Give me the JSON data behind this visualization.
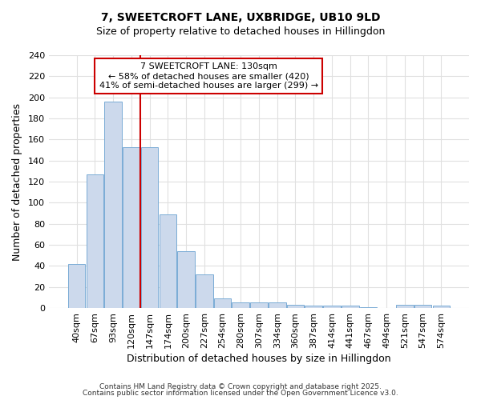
{
  "title": "7, SWEETCROFT LANE, UXBRIDGE, UB10 9LD",
  "subtitle": "Size of property relative to detached houses in Hillingdon",
  "xlabel": "Distribution of detached houses by size in Hillingdon",
  "ylabel": "Number of detached properties",
  "categories": [
    "40sqm",
    "67sqm",
    "93sqm",
    "120sqm",
    "147sqm",
    "174sqm",
    "200sqm",
    "227sqm",
    "254sqm",
    "280sqm",
    "307sqm",
    "334sqm",
    "360sqm",
    "387sqm",
    "414sqm",
    "441sqm",
    "467sqm",
    "494sqm",
    "521sqm",
    "547sqm",
    "574sqm"
  ],
  "values": [
    42,
    127,
    196,
    153,
    153,
    89,
    54,
    32,
    9,
    5,
    5,
    5,
    3,
    2,
    2,
    2,
    1,
    0,
    3,
    3,
    2
  ],
  "bar_color": "#ccd9ec",
  "bar_edge_color": "#7aacd6",
  "vline_x_index": 3,
  "vline_color": "#cc0000",
  "annotation_title": "7 SWEETCROFT LANE: 130sqm",
  "annotation_line1": "← 58% of detached houses are smaller (420)",
  "annotation_line2": "41% of semi-detached houses are larger (299) →",
  "annotation_box_color": "#ffffff",
  "annotation_box_edge": "#cc0000",
  "ylim": [
    0,
    240
  ],
  "yticks": [
    0,
    20,
    40,
    60,
    80,
    100,
    120,
    140,
    160,
    180,
    200,
    220,
    240
  ],
  "fig_background": "#ffffff",
  "plot_background": "#ffffff",
  "grid_color": "#e0e0e0",
  "footer_line1": "Contains HM Land Registry data © Crown copyright and database right 2025.",
  "footer_line2": "Contains public sector information licensed under the Open Government Licence v3.0."
}
